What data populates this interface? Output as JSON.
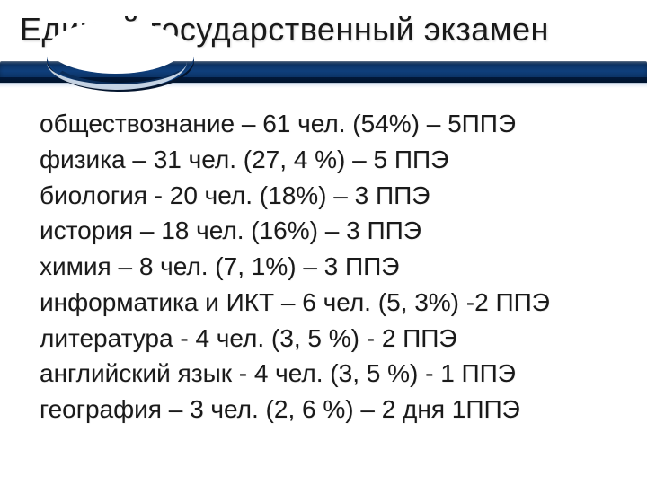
{
  "title": "Единый государственный экзамен",
  "colors": {
    "text": "#1a1a1a",
    "bar_dark": "#0a2d5a",
    "bar_mid": "#0f3f7c",
    "bar_deep": "#001228",
    "background": "#ffffff"
  },
  "typography": {
    "title_fontsize_pt": 27,
    "body_fontsize_pt": 21,
    "font_family": "Arial"
  },
  "lines": [
    "обществознание – 61 чел. (54%) – 5ППЭ",
    "физика – 31 чел. (27, 4 %) – 5 ППЭ",
    "биология  - 20 чел. (18%) – 3 ППЭ",
    "история – 18 чел. (16%) – 3 ППЭ",
    "химия – 8 чел. (7, 1%) – 3 ППЭ",
    "информатика и ИКТ – 6 чел. (5, 3%) -2 ППЭ",
    "литература  - 4 чел. (3, 5 %)  - 2 ППЭ",
    "английский язык - 4 чел. (3, 5 %)  - 1 ППЭ",
    "география – 3 чел. (2, 6 %) – 2 дня 1ППЭ"
  ]
}
